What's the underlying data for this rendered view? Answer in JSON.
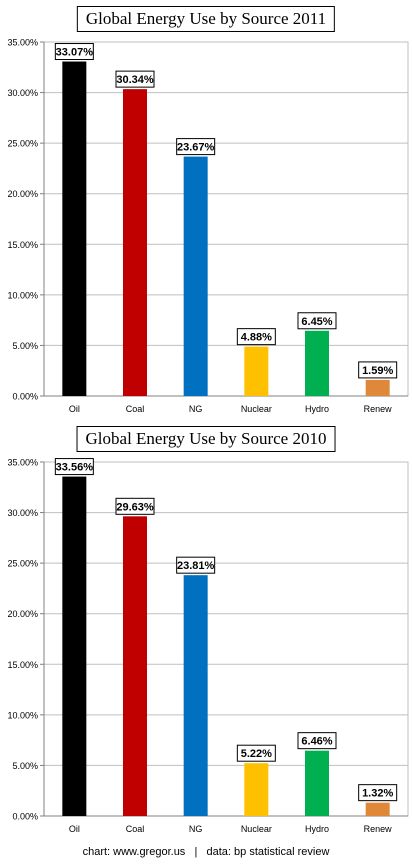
{
  "chart_data": [
    {
      "type": "bar",
      "title": "Global Energy Use by Source 2011",
      "categories": [
        "Oil",
        "Coal",
        "NG",
        "Nuclear",
        "Hydro",
        "Renew"
      ],
      "values": [
        33.07,
        30.34,
        23.67,
        4.88,
        6.45,
        1.59
      ],
      "value_labels": [
        "33.07%",
        "30.34%",
        "23.67%",
        "4.88%",
        "6.45%",
        "1.59%"
      ],
      "colors": [
        "#000000",
        "#c00000",
        "#0070c0",
        "#ffc000",
        "#00b050",
        "#e0883a"
      ],
      "yticks": [
        "0.00%",
        "5.00%",
        "10.00%",
        "15.00%",
        "20.00%",
        "25.00%",
        "30.00%",
        "35.00%"
      ],
      "ylim": [
        0,
        35
      ],
      "grid": true,
      "xlabel": "",
      "ylabel": ""
    },
    {
      "type": "bar",
      "title": "Global Energy Use by Source 2010",
      "categories": [
        "Oil",
        "Coal",
        "NG",
        "Nuclear",
        "Hydro",
        "Renew"
      ],
      "values": [
        33.56,
        29.63,
        23.81,
        5.22,
        6.46,
        1.32
      ],
      "value_labels": [
        "33.56%",
        "29.63%",
        "23.81%",
        "5.22%",
        "6.46%",
        "1.32%"
      ],
      "colors": [
        "#000000",
        "#c00000",
        "#0070c0",
        "#ffc000",
        "#00b050",
        "#e0883a"
      ],
      "yticks": [
        "0.00%",
        "5.00%",
        "10.00%",
        "15.00%",
        "20.00%",
        "25.00%",
        "30.00%",
        "35.00%"
      ],
      "ylim": [
        0,
        35
      ],
      "grid": true,
      "xlabel": "",
      "ylabel": ""
    }
  ],
  "footer": {
    "credit": "chart: www.gregor.us",
    "separator": "|",
    "source": "data: bp statistical review"
  }
}
